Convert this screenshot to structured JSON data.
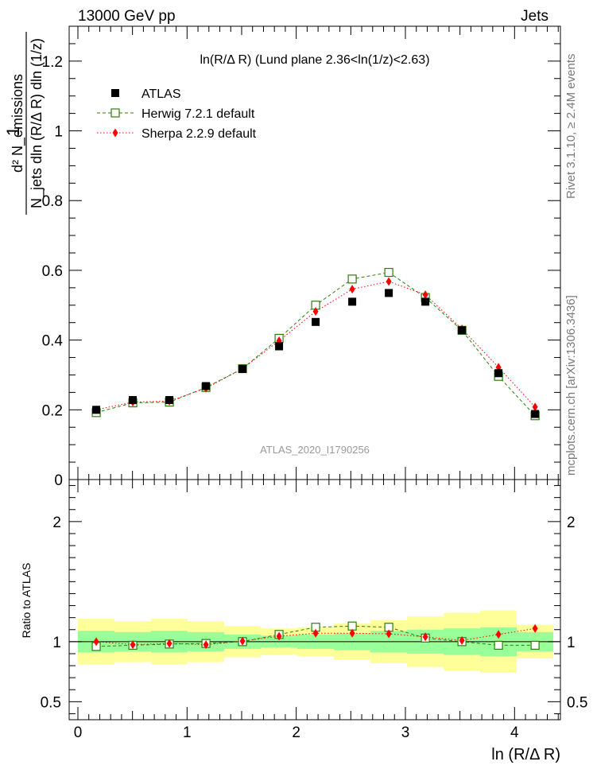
{
  "header": {
    "left": "13000 GeV pp",
    "right": "Jets"
  },
  "side_labels": {
    "rivet": "Rivet 3.1.10, ≥ 2.4M events",
    "mcplots": "mcplots.cern.ch [arXiv:1306.3436]"
  },
  "chart_data": [
    {
      "type": "scatter",
      "title": "ln(R/Δ R) (Lund plane 2.36<ln(1/z)<2.63)",
      "watermark": "ATLAS_2020_I1790256",
      "xlabel": "ln (R/Δ R)",
      "ylabel_fraction": {
        "numerator": "d² N_emissions",
        "denominator": "N_jets dln (R/Δ R) dln (1/z)",
        "prefix": "1"
      },
      "xlim": [
        -0.08,
        4.42
      ],
      "ylim": [
        0,
        1.3
      ],
      "x_ticks": [
        "0",
        "1",
        "2",
        "3",
        "4"
      ],
      "y_ticks": [
        "0",
        "0.2",
        "0.4",
        "0.6",
        "0.8",
        "1",
        "1.2"
      ],
      "legend_position": "top-left",
      "x": [
        0.168,
        0.503,
        0.838,
        1.173,
        1.508,
        1.843,
        2.178,
        2.513,
        2.848,
        3.183,
        3.518,
        3.853,
        4.188
      ],
      "series": [
        {
          "name": "ATLAS",
          "color": "#000000",
          "marker": "filled-square",
          "values": [
            0.2,
            0.228,
            0.228,
            0.268,
            0.317,
            0.382,
            0.452,
            0.51,
            0.535,
            0.51,
            0.428,
            0.305,
            0.188
          ]
        },
        {
          "name": "Herwig 7.2.1 default",
          "color": "#2f7d0f",
          "marker": "open-square",
          "values": [
            0.192,
            0.22,
            0.222,
            0.264,
            0.318,
            0.405,
            0.5,
            0.575,
            0.594,
            0.522,
            0.428,
            0.296,
            0.183
          ]
        },
        {
          "name": "Sherpa 2.2.9 default",
          "color": "#ff0000",
          "marker": "diamond",
          "values": [
            0.2,
            0.222,
            0.225,
            0.262,
            0.318,
            0.398,
            0.482,
            0.546,
            0.568,
            0.53,
            0.432,
            0.322,
            0.208
          ]
        }
      ]
    },
    {
      "type": "scatter",
      "ylabel": "Ratio to ATLAS",
      "xlim": [
        -0.08,
        4.42
      ],
      "ylim": [
        0.35,
        2.35
      ],
      "y_ticks": [
        "0.5",
        "1",
        "2"
      ],
      "bins": [
        0,
        0.335,
        0.67,
        1.005,
        1.34,
        1.675,
        2.01,
        2.345,
        2.68,
        3.015,
        3.35,
        3.685,
        4.02,
        4.355
      ],
      "band_inner": {
        "color": "#99ff99",
        "lower": [
          0.91,
          0.92,
          0.91,
          0.92,
          0.94,
          0.95,
          0.94,
          0.93,
          0.91,
          0.9,
          0.89,
          0.88,
          0.92
        ],
        "upper": [
          1.09,
          1.08,
          1.09,
          1.08,
          1.06,
          1.05,
          1.06,
          1.07,
          1.09,
          1.1,
          1.11,
          1.12,
          1.08
        ]
      },
      "band_outer": {
        "color": "#ffff99",
        "lower": [
          0.81,
          0.83,
          0.81,
          0.83,
          0.87,
          0.89,
          0.88,
          0.85,
          0.82,
          0.79,
          0.76,
          0.74,
          0.86
        ],
        "upper": [
          1.19,
          1.17,
          1.19,
          1.17,
          1.13,
          1.11,
          1.12,
          1.15,
          1.18,
          1.21,
          1.24,
          1.26,
          1.14
        ]
      },
      "x": [
        0.168,
        0.503,
        0.838,
        1.173,
        1.508,
        1.843,
        2.178,
        2.513,
        2.848,
        3.183,
        3.518,
        3.853,
        4.188
      ],
      "series": [
        {
          "name": "Herwig 7.2.1 default",
          "color": "#2f7d0f",
          "marker": "open-square",
          "values": [
            0.96,
            0.97,
            0.98,
            0.985,
            1.0,
            1.06,
            1.12,
            1.13,
            1.12,
            1.03,
            1.0,
            0.97,
            0.97
          ]
        },
        {
          "name": "Sherpa 2.2.9 default",
          "color": "#ff0000",
          "marker": "diamond",
          "values": [
            1.0,
            0.975,
            0.985,
            0.975,
            1.005,
            1.045,
            1.07,
            1.07,
            1.065,
            1.04,
            1.01,
            1.06,
            1.11
          ]
        }
      ]
    }
  ]
}
